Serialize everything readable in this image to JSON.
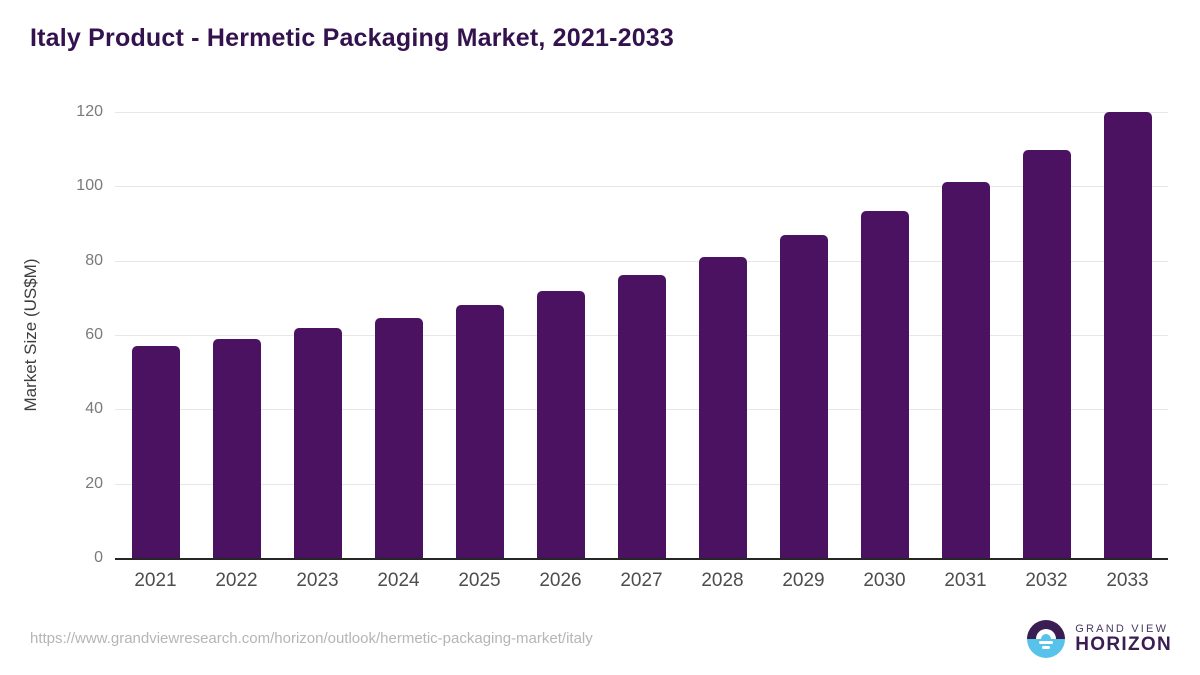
{
  "page": {
    "source_url": "https://www.grandviewresearch.com/horizon/outlook/hermetic-packaging-market/italy"
  },
  "chart_data": {
    "type": "bar",
    "title": "Italy Product - Hermetic Packaging Market, 2021-2033",
    "ylabel": "Market Size (US$M)",
    "xlabel": "",
    "categories": [
      "2021",
      "2022",
      "2023",
      "2024",
      "2025",
      "2026",
      "2027",
      "2028",
      "2029",
      "2030",
      "2031",
      "2032",
      "2033"
    ],
    "values": [
      57.0,
      59.0,
      61.8,
      64.6,
      68.2,
      71.9,
      76.2,
      81.0,
      86.9,
      93.3,
      101.3,
      109.8,
      119.9
    ],
    "ylim": [
      0,
      120
    ],
    "yticks": [
      0,
      20,
      40,
      60,
      80,
      100,
      120
    ],
    "grid": "horizontal",
    "legend": "none",
    "bar_color": "#4a1261",
    "gridline_color": "#e7e7e7",
    "axis_color": "#262626"
  },
  "branding": {
    "logo_icon": "horizon-sun-icon",
    "logo_top": "GRAND VIEW",
    "logo_bottom": "HORIZON",
    "colors": {
      "purple": "#3a1d52",
      "blue": "#58c3ea"
    }
  }
}
